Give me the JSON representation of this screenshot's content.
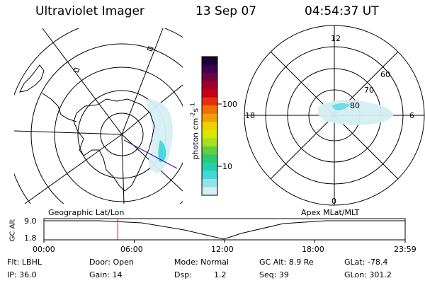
{
  "header": {
    "title": "Ultraviolet Imager",
    "date": "13 Sep 07",
    "time": "04:54:37 UT"
  },
  "colorbar": {
    "unit_prefix": "photon cm",
    "unit_exp1": "-2",
    "unit_mid": "s",
    "unit_exp2": "-1",
    "ticks": [
      "100",
      "10"
    ],
    "colors": [
      "#1a0033",
      "#3d0050",
      "#700040",
      "#a0002a",
      "#c8001a",
      "#e83010",
      "#f07000",
      "#f0a000",
      "#f0d000",
      "#d8e800",
      "#a8e020",
      "#60d040",
      "#30c870",
      "#20d0b0",
      "#40d8d8",
      "#90e4e8",
      "#d0f0f4"
    ]
  },
  "left_map": {
    "subtitle": "Geographic Lat/Lon"
  },
  "right_map": {
    "subtitle": "Apex MLat/MLT",
    "mlt_labels": {
      "top": "12",
      "left": "18",
      "right": "6",
      "bottom": "0"
    },
    "lat_labels": [
      "60",
      "70",
      "80"
    ]
  },
  "timeline": {
    "ylabel": "GC Alt",
    "yticks": [
      "9.0",
      "1.8"
    ],
    "xticks": [
      "00:00",
      "06:00",
      "12:00",
      "18:00",
      "23:59"
    ],
    "marker_hour": 4.91
  },
  "info": {
    "row1": {
      "filter": "Flt: LBHL",
      "door": "Door: Open",
      "mode": "Mode: Normal",
      "gc_alt": "GC Alt: 8.9 Re",
      "glat": "GLat: -78.4"
    },
    "row2": {
      "ip": "IP: 36.0",
      "gain": "Gain: 14",
      "dsp_label": "Dsp:",
      "dsp_value": "1.2",
      "seq": "Seq: 39",
      "glon": "GLon: 301.2"
    }
  }
}
